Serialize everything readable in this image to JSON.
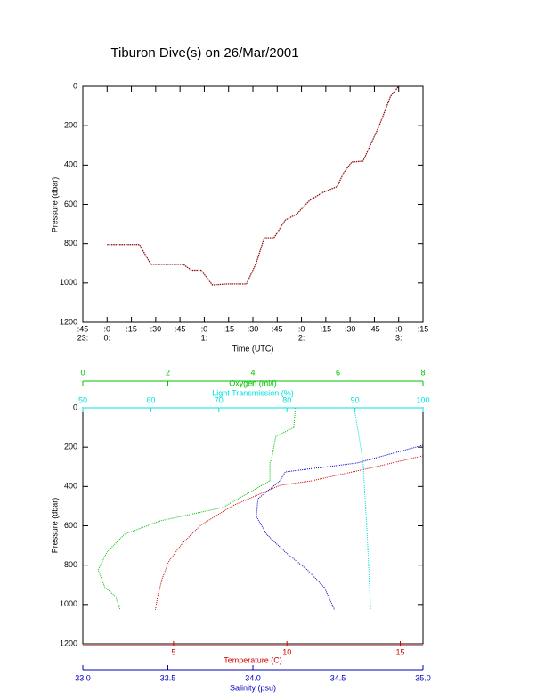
{
  "chart_data": [
    {
      "type": "line",
      "title": "Tiburon Dive(s) on 26/Mar/2001",
      "xlabel": "Time (UTC)",
      "ylabel": "Pressure (dbar)",
      "color": "#8b0000",
      "x": [
        0,
        20,
        27,
        47,
        52,
        58,
        65,
        74,
        86,
        92,
        97,
        103,
        110,
        117,
        125,
        133,
        142,
        146,
        151,
        158,
        168,
        175,
        180
      ],
      "values": [
        805,
        805,
        905,
        905,
        935,
        935,
        1010,
        1005,
        1005,
        900,
        770,
        770,
        680,
        650,
        580,
        540,
        510,
        440,
        385,
        380,
        200,
        50,
        0
      ],
      "xlim": [
        -15,
        195
      ],
      "xticks": [
        {
          "value": -15,
          "label": ":45"
        },
        {
          "value": 0,
          "label": ":0"
        },
        {
          "value": 15,
          "label": ":15"
        },
        {
          "value": 30,
          "label": ":30"
        },
        {
          "value": 45,
          "label": ":45"
        },
        {
          "value": 60,
          "label": ":0"
        },
        {
          "value": 75,
          "label": ":15"
        },
        {
          "value": 90,
          "label": ":30"
        },
        {
          "value": 105,
          "label": ":45"
        },
        {
          "value": 120,
          "label": ":0"
        },
        {
          "value": 135,
          "label": ":15"
        },
        {
          "value": 150,
          "label": ":30"
        },
        {
          "value": 165,
          "label": ":45"
        },
        {
          "value": 180,
          "label": ":0"
        },
        {
          "value": 195,
          "label": ":15"
        }
      ],
      "xticks_hours": [
        {
          "value": -15,
          "label": "23:"
        },
        {
          "value": 0,
          "label": "0:"
        },
        {
          "value": 60,
          "label": "1:"
        },
        {
          "value": 120,
          "label": "2:"
        },
        {
          "value": 180,
          "label": "3:"
        }
      ],
      "ylim": [
        1200,
        0
      ],
      "yticks": [
        0,
        200,
        400,
        600,
        800,
        1000,
        1200
      ]
    },
    {
      "type": "profile",
      "ylabel": "Pressure (dbar)",
      "ylim": [
        1200,
        0
      ],
      "yticks": [
        0,
        200,
        400,
        600,
        800,
        1000,
        1200
      ],
      "series": [
        {
          "name": "Oxygen (ml/l)",
          "color": "#00c000",
          "xlim": [
            0,
            8
          ],
          "xticks": [
            0,
            2,
            4,
            6,
            8
          ],
          "pressure": [
            0,
            100,
            145,
            258,
            281,
            371,
            507,
            575,
            643,
            733,
            824,
            914,
            959,
            1027
          ],
          "values": [
            5.0,
            4.96,
            4.54,
            4.44,
            4.4,
            4.4,
            3.29,
            1.82,
            0.98,
            0.57,
            0.36,
            0.52,
            0.77,
            0.88
          ]
        },
        {
          "name": "Light Transmission (%)",
          "color": "#00e0e0",
          "xlim": [
            50,
            100
          ],
          "xticks": [
            50,
            60,
            70,
            80,
            90,
            100
          ],
          "pressure": [
            0,
            190,
            281,
            462,
            643,
            869,
            1027
          ],
          "values": [
            89.9,
            90.8,
            91.2,
            91.5,
            91.8,
            92.1,
            92.3
          ]
        },
        {
          "name": "Temperature (C)",
          "color": "#d00000",
          "xlim": [
            1,
            16
          ],
          "xticks": [
            5,
            10,
            15
          ],
          "pressure": [
            244,
            303,
            371,
            394,
            498,
            597,
            688,
            778,
            869,
            959,
            1027
          ],
          "values": [
            16.0,
            13.8,
            11.1,
            9.7,
            7.6,
            6.2,
            5.4,
            4.8,
            4.5,
            4.3,
            4.2
          ]
        },
        {
          "name": "Salinity (psu)",
          "color": "#0000c0",
          "xlim": [
            33,
            35
          ],
          "xticks": [
            {
              "value": 33,
              "label": "33.0"
            },
            33.5,
            {
              "value": 34,
              "label": "34.0"
            },
            34.5,
            {
              "value": 35,
              "label": "35.0"
            }
          ],
          "pressure": [
            190,
            281,
            326,
            371,
            462,
            552,
            643,
            733,
            824,
            914,
            1027
          ],
          "values": [
            35.0,
            34.61,
            34.19,
            34.16,
            34.03,
            34.02,
            34.08,
            34.19,
            34.32,
            34.42,
            34.48
          ]
        }
      ]
    }
  ]
}
